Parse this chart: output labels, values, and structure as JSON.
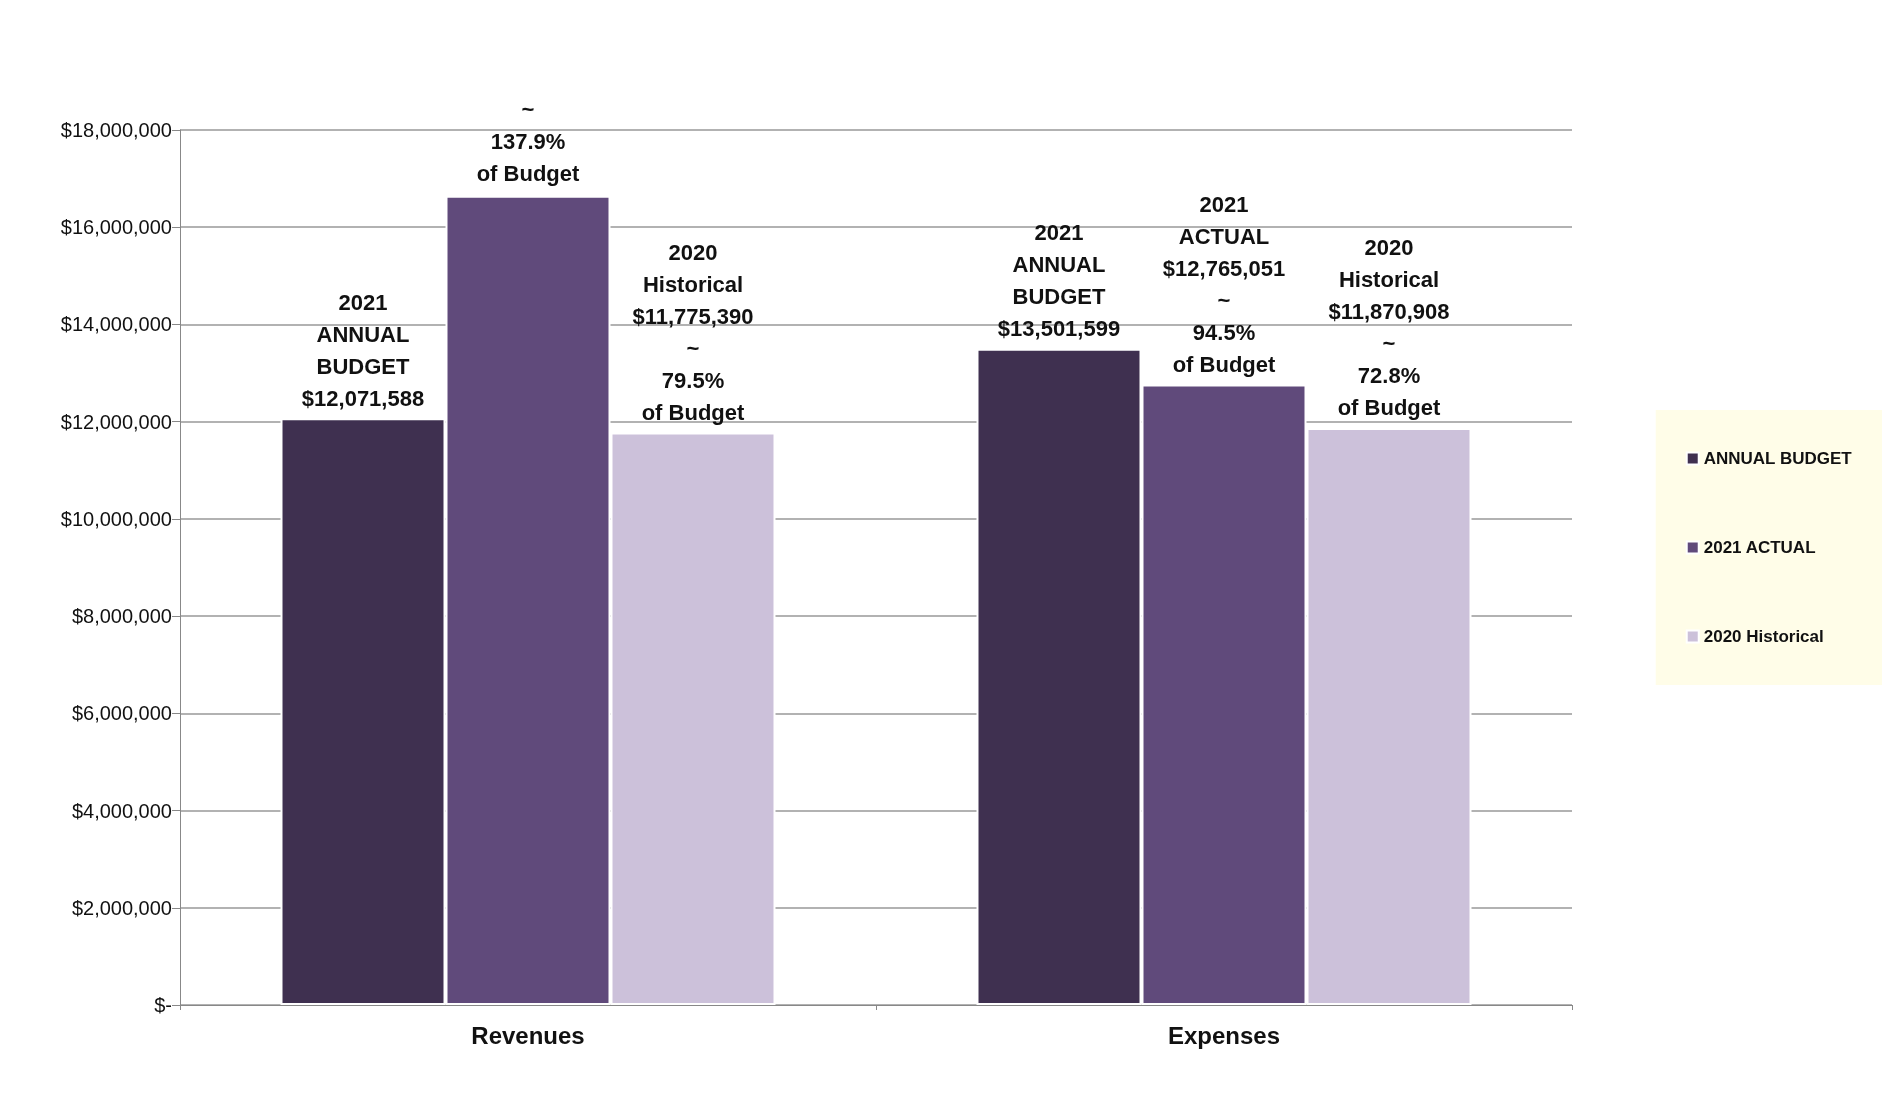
{
  "chart_data": {
    "type": "bar",
    "categories": [
      "Revenues",
      "Expenses"
    ],
    "series": [
      {
        "name": "ANNUAL BUDGET",
        "color": "#3f3050",
        "values": [
          12071588,
          13501599
        ],
        "value_labels": [
          "2021\nANNUAL\nBUDGET\n$12,071,588",
          "2021\nANNUAL\nBUDGET\n$13,501,599"
        ]
      },
      {
        "name": "2021 ACTUAL",
        "color": "#604a7b",
        "values": [
          16650000,
          12765051
        ],
        "value_labels": [
          null,
          "2021\nACTUAL\n$12,765,051\n~\n94.5%\nof Budget"
        ]
      },
      {
        "name": "2020 Historical",
        "color": "#ccc1da",
        "values": [
          11775390,
          11870908
        ],
        "value_labels": [
          "2020\nHistorical\n$11,775,390\n~\n79.5%\nof Budget",
          "2020\nHistorical\n$11,870,908\n~\n72.8%\nof Budget"
        ]
      }
    ],
    "ylim": [
      0,
      18000000
    ],
    "yticks": [
      {
        "value": 0,
        "label": "$-"
      },
      {
        "value": 2000000,
        "label": "$2,000,000"
      },
      {
        "value": 4000000,
        "label": "$4,000,000"
      },
      {
        "value": 6000000,
        "label": "$6,000,000"
      },
      {
        "value": 8000000,
        "label": "$8,000,000"
      },
      {
        "value": 10000000,
        "label": "$10,000,000"
      },
      {
        "value": 12000000,
        "label": "$12,000,000"
      },
      {
        "value": 14000000,
        "label": "$14,000,000"
      },
      {
        "value": 16000000,
        "label": "$16,000,000"
      },
      {
        "value": 18000000,
        "label": "$18,000,000"
      }
    ],
    "annotations": [
      {
        "text": "~\n137.9%\nof Budget",
        "x": "Revenues",
        "y": 16650000
      }
    ],
    "grid": "y",
    "legend": "right"
  }
}
